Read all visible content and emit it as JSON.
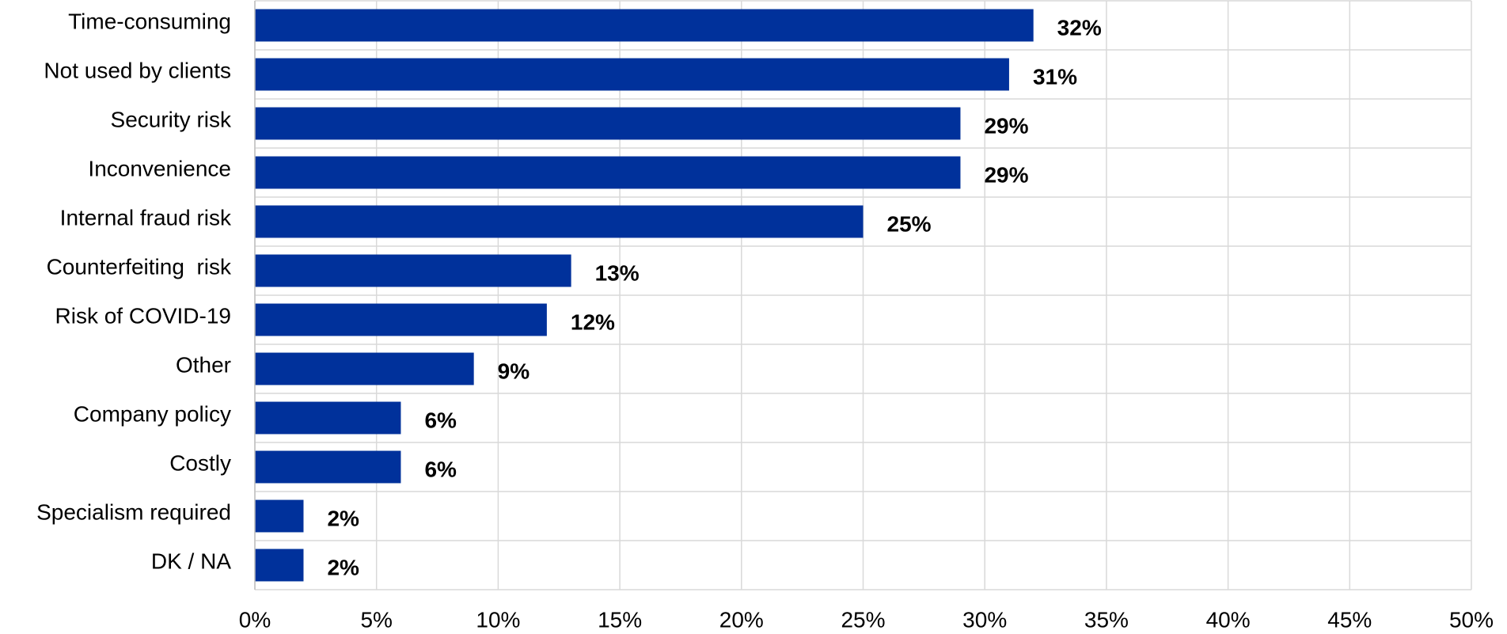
{
  "chart_data": {
    "type": "bar",
    "orientation": "horizontal",
    "categories": [
      "Time-consuming",
      "Not used by clients",
      "Security risk",
      "Inconvenience",
      "Internal fraud risk",
      "Counterfeiting  risk",
      "Risk of COVID-19",
      "Other",
      "Company policy",
      "Costly",
      "Specialism required",
      "DK / NA"
    ],
    "values": [
      32,
      31,
      29,
      29,
      25,
      13,
      12,
      9,
      6,
      6,
      2,
      2
    ],
    "value_labels": [
      "32%",
      "31%",
      "29%",
      "29%",
      "25%",
      "13%",
      "12%",
      "9%",
      "6%",
      "6%",
      "2%",
      "2%"
    ],
    "color": "#00319b",
    "xlim": [
      0,
      50
    ],
    "xticks": [
      {
        "value": 0,
        "label": "0%"
      },
      {
        "value": 5,
        "label": "5%"
      },
      {
        "value": 10,
        "label": "10%"
      },
      {
        "value": 15,
        "label": "15%"
      },
      {
        "value": 20,
        "label": "20%"
      },
      {
        "value": 25,
        "label": "25%"
      },
      {
        "value": 30,
        "label": "30%"
      },
      {
        "value": 35,
        "label": "35%"
      },
      {
        "value": 40,
        "label": "40%"
      },
      {
        "value": 45,
        "label": "45%"
      },
      {
        "value": 50,
        "label": "50%"
      }
    ],
    "grid": true
  }
}
